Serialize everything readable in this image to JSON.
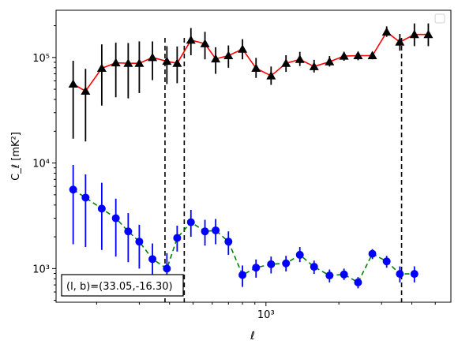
{
  "chart_data": {
    "type": "scatter",
    "x_scale": "log",
    "y_scale": "log",
    "xlabel": "ℓ",
    "ylabel": "C_ℓ  [mK²]",
    "ylim": [
      480,
      280000
    ],
    "xlim": [
      136,
      5800
    ],
    "xtick_labels": [
      {
        "value": 1000,
        "label": "10³"
      }
    ],
    "ytick_labels": [
      {
        "value": 1000,
        "label": "10³"
      },
      {
        "value": 10000,
        "label": "10⁴"
      },
      {
        "value": 100000,
        "label": "10⁵"
      }
    ],
    "annotation": "(l, b)=(33.05,-16.30)",
    "legend": {
      "placement": "top-right",
      "entries": []
    },
    "vlines": [
      383,
      460,
      3630
    ],
    "series": [
      {
        "marker": "triangle",
        "marker_color": "#000000",
        "line_color": "#ff0000",
        "line_style": "solid",
        "error_color": "#000000",
        "x": [
          160,
          180,
          210,
          240,
          270,
          300,
          340,
          390,
          430,
          490,
          560,
          620,
          700,
          800,
          910,
          1050,
          1210,
          1380,
          1580,
          1830,
          2100,
          2400,
          2750,
          3150,
          3570,
          4100,
          4680
        ],
        "y": [
          56000,
          48000,
          79000,
          89000,
          88000,
          88000,
          100000,
          92000,
          88000,
          146000,
          135000,
          97000,
          104000,
          120000,
          79000,
          67000,
          88000,
          96000,
          82000,
          91000,
          103000,
          104000,
          104000,
          174000,
          140000,
          165000,
          165000
        ],
        "err_low": [
          39000,
          32000,
          44000,
          47000,
          47000,
          42000,
          39000,
          36000,
          31000,
          41000,
          39000,
          27000,
          24000,
          24000,
          15000,
          12000,
          15000,
          13000,
          10000,
          9000,
          10000,
          10000,
          8000,
          17000,
          24000,
          37000,
          37000
        ],
        "err_high": [
          37000,
          30000,
          54000,
          49000,
          49000,
          54000,
          42000,
          36000,
          39000,
          44000,
          40000,
          28000,
          26000,
          29000,
          20000,
          15000,
          17000,
          17000,
          13000,
          12000,
          10000,
          9000,
          9000,
          23000,
          27000,
          45000,
          45000
        ]
      },
      {
        "marker": "circle",
        "marker_color": "#0000ff",
        "line_color": "#008000",
        "line_style": "dashed",
        "error_color": "#0000ff",
        "x": [
          160,
          180,
          210,
          240,
          270,
          300,
          340,
          390,
          430,
          490,
          560,
          620,
          700,
          800,
          910,
          1050,
          1210,
          1380,
          1580,
          1830,
          2100,
          2400,
          2750,
          3150,
          3570,
          4100
        ],
        "y": [
          5600,
          4700,
          3700,
          3000,
          2250,
          1800,
          1230,
          1000,
          1950,
          2750,
          2250,
          2300,
          1800,
          870,
          1020,
          1100,
          1120,
          1350,
          1040,
          860,
          880,
          740,
          1380,
          1170,
          890,
          890
        ],
        "err_low": [
          3900,
          3100,
          2200,
          1700,
          1100,
          800,
          520,
          400,
          500,
          750,
          600,
          600,
          450,
          200,
          200,
          200,
          180,
          200,
          150,
          120,
          100,
          90,
          150,
          150,
          150,
          150
        ],
        "err_high": [
          4000,
          3100,
          2800,
          1600,
          1100,
          800,
          500,
          400,
          600,
          850,
          650,
          650,
          450,
          200,
          200,
          200,
          200,
          250,
          150,
          120,
          120,
          90,
          150,
          150,
          160,
          160
        ]
      }
    ]
  }
}
